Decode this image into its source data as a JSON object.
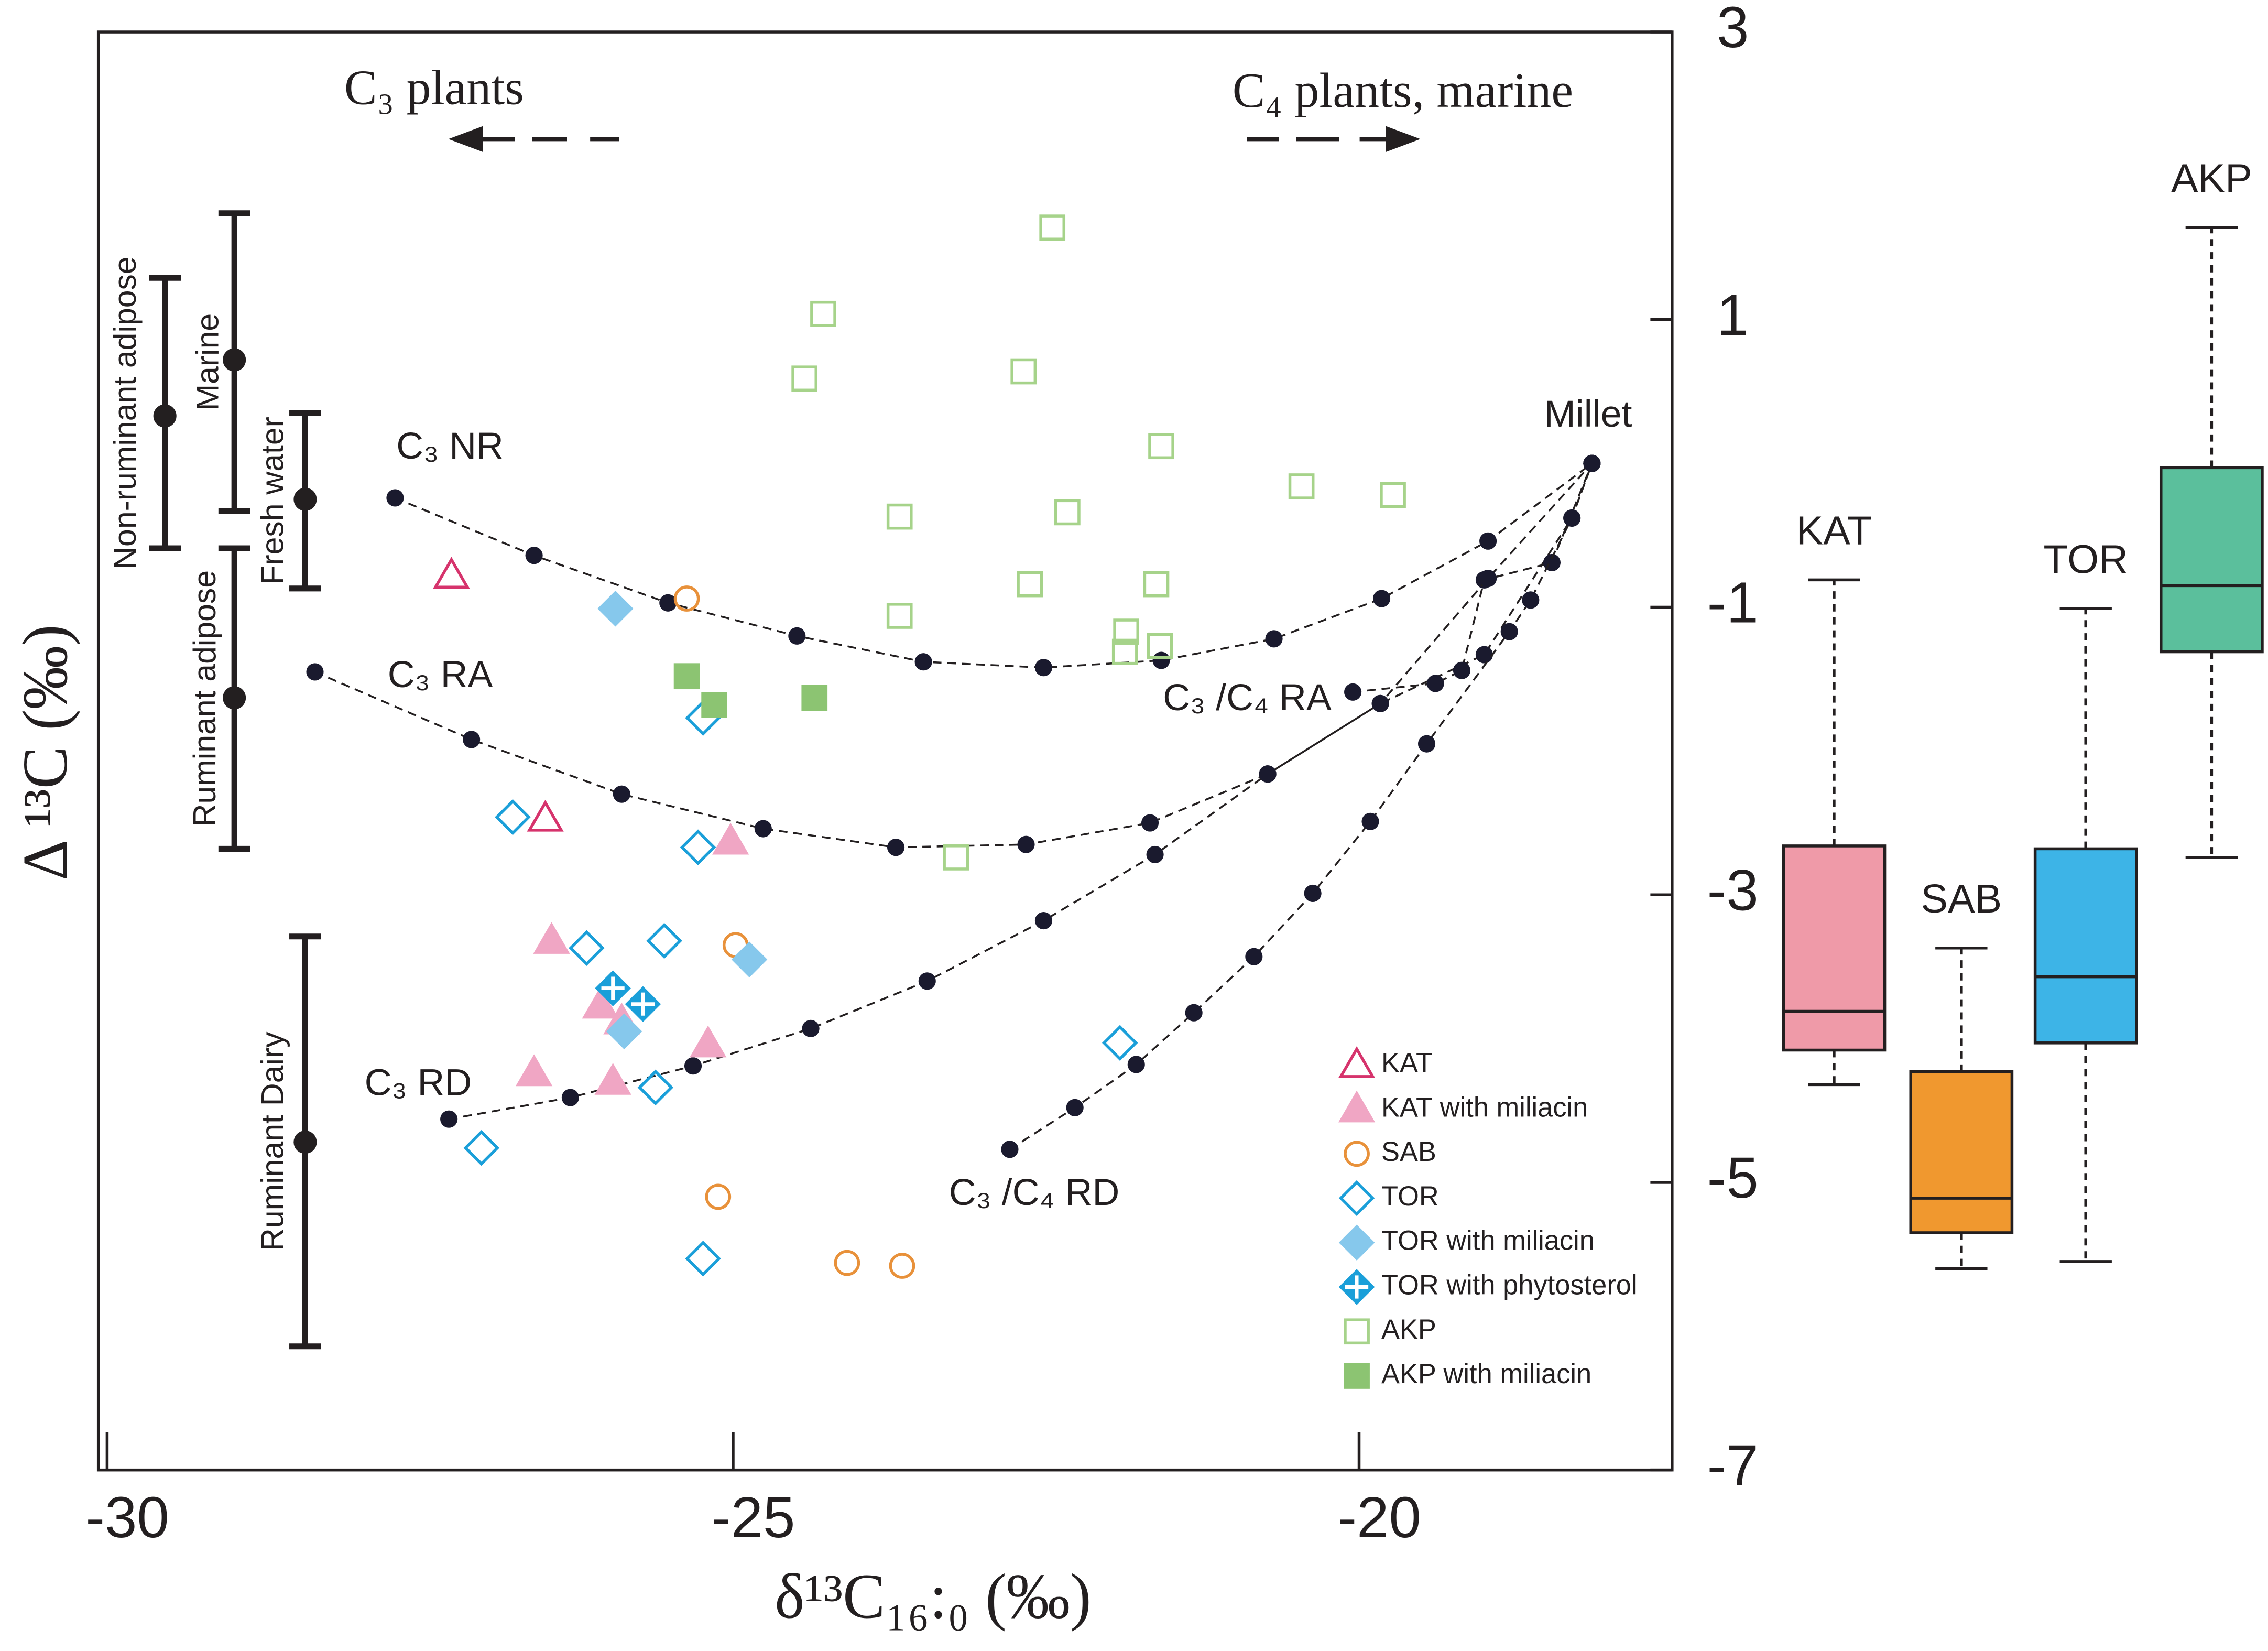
{
  "chart_data": [
    {
      "type": "scatter",
      "xlabel": "δ¹³C₁₆:₀ (‰)",
      "ylabel": "Δ ¹³C (‰)",
      "xlim": [
        -30.07,
        -17.5
      ],
      "xticks": [
        -30,
        -25,
        -20
      ],
      "ylim": [
        -7,
        3
      ],
      "yticks": [
        -7,
        -5,
        -3,
        -1,
        1,
        3
      ],
      "annotations": [
        "C₃ plants",
        "C₄ plants, marine",
        "Millet"
      ],
      "series": [
        {
          "name": "KAT",
          "color": "#d6336c",
          "marker": "triangle",
          "filled": false,
          "x": [
            -27.25,
            -26.5
          ],
          "y": [
            -0.78,
            -2.47
          ]
        },
        {
          "name": "KAT with miliacin",
          "color": "#f0a6c4",
          "marker": "triangle",
          "filled": true,
          "x": [
            -26.45,
            -26.06,
            -25.89,
            -25.2,
            -26.59,
            -25.96,
            -25.02
          ],
          "y": [
            -3.32,
            -3.77,
            -3.88,
            -4.04,
            -4.24,
            -4.3,
            -2.63
          ]
        },
        {
          "name": "SAB",
          "color": "#e8913a",
          "marker": "circle",
          "filled": false,
          "x": [
            -25.37,
            -24.98,
            -25.12,
            -24.09,
            -23.65
          ],
          "y": [
            -0.94,
            -3.35,
            -5.1,
            -5.56,
            -5.58
          ]
        },
        {
          "name": "TOR",
          "color": "#1a9fd9",
          "marker": "diamond",
          "filled": false,
          "x": [
            -25.24,
            -26.76,
            -25.28,
            -26.17,
            -25.55,
            -25.62,
            -27.01,
            -21.91,
            -25.24
          ],
          "y": [
            -1.77,
            -2.46,
            -2.67,
            -3.37,
            -3.32,
            -4.34,
            -4.76,
            -4.03,
            -5.53
          ]
        },
        {
          "name": "TOR with miliacin",
          "color": "#86c8ec",
          "marker": "diamond",
          "filled": true,
          "x": [
            -25.94,
            -24.87,
            -25.87
          ],
          "y": [
            -1.01,
            -3.45,
            -3.95
          ]
        },
        {
          "name": "TOR with phytosterol",
          "color": "#1a9fd9",
          "marker": "diamond-cross",
          "filled": true,
          "x": [
            -25.96,
            -25.72
          ],
          "y": [
            -3.65,
            -3.76
          ]
        },
        {
          "name": "AKP",
          "color": "#a6d38a",
          "marker": "square",
          "filled": false,
          "x": [
            -22.45,
            -24.28,
            -24.43,
            -22.68,
            -21.58,
            -23.67,
            -22.33,
            -20.46,
            -19.73,
            -22.63,
            -21.62,
            -23.67,
            -21.86,
            -21.87,
            -21.59,
            -23.22
          ],
          "y": [
            1.64,
            1.04,
            0.59,
            0.64,
            0.12,
            -0.37,
            -0.34,
            -0.16,
            -0.22,
            -0.84,
            -0.84,
            -1.06,
            -1.17,
            -1.31,
            -1.27,
            -2.74
          ]
        },
        {
          "name": "AKP with miliacin",
          "color": "#8cc472",
          "marker": "square",
          "filled": true,
          "x": [
            -25.37,
            -25.15,
            -24.35
          ],
          "y": [
            -1.48,
            -1.68,
            -1.63
          ]
        }
      ],
      "curves": [
        {
          "name": "C₃ NR",
          "x": [
            -27.7,
            -26.59,
            -25.52,
            -24.49,
            -23.48,
            -22.52,
            -21.58,
            -20.68,
            -19.82,
            -18.97,
            -18.14
          ],
          "y": [
            -0.24,
            -0.64,
            -0.97,
            -1.2,
            -1.38,
            -1.42,
            -1.37,
            -1.22,
            -0.94,
            -0.54,
            0
          ]
        },
        {
          "name": "C₃ RA",
          "x": [
            -28.34,
            -27.09,
            -25.89,
            -24.76,
            -23.7,
            -22.66,
            -21.67,
            -20.73,
            -19.83,
            -19.0,
            -18.3,
            -18.14
          ],
          "y": [
            -1.45,
            -1.92,
            -2.3,
            -2.54,
            -2.67,
            -2.65,
            -2.5,
            -2.16,
            -1.67,
            -1.33,
            -0.38,
            0
          ]
        },
        {
          "name": "C₃ /C₄ RA",
          "x": [
            -20.05,
            -19.39,
            -19.18,
            -19.0,
            -18.46,
            -18.14
          ],
          "y": [
            -1.59,
            -1.53,
            -1.44,
            -0.81,
            -0.69,
            0
          ]
        },
        {
          "name": "C₃ RD",
          "x": [
            -27.27,
            -26.3,
            -25.32,
            -24.38,
            -23.45,
            -22.52,
            -21.63,
            -20.73,
            -19.83,
            -18.97,
            -18.14
          ],
          "y": [
            -4.56,
            -4.41,
            -4.19,
            -3.93,
            -3.6,
            -3.18,
            -2.72,
            -2.16,
            -1.67,
            -0.8,
            0
          ]
        },
        {
          "name": "C₃ /C₄ RD",
          "x": [
            -22.79,
            -22.27,
            -21.78,
            -21.32,
            -20.84,
            -20.37,
            -19.91,
            -19.46,
            -18.8,
            -18.63,
            -18.3,
            -18.14
          ],
          "y": [
            -4.77,
            -4.48,
            -4.18,
            -3.82,
            -3.43,
            -2.99,
            -2.49,
            -1.95,
            -1.17,
            -0.95,
            -0.38,
            0
          ]
        }
      ],
      "ranges": [
        {
          "name": "Non-ruminant adipose",
          "low": -0.59,
          "mid": 0.33,
          "high": 1.29
        },
        {
          "name": "Marine",
          "low": -0.33,
          "mid": 0.72,
          "high": 1.74
        },
        {
          "name": "Fresh water",
          "low": -0.87,
          "mid": -0.25,
          "high": 0.35
        },
        {
          "name": "Ruminant adipose",
          "low": -2.68,
          "mid": -1.63,
          "high": -0.59
        },
        {
          "name": "Ruminant Dairy",
          "low": -6.14,
          "mid": -4.72,
          "high": -3.29
        }
      ]
    },
    {
      "type": "box",
      "ylim": [
        -7,
        3
      ],
      "categories": [
        "KAT",
        "SAB",
        "TOR",
        "AKP"
      ],
      "colors": [
        "#ef9aa8",
        "#f0982f",
        "#3db4e7",
        "#5bbf9c"
      ],
      "min": [
        -4.32,
        -5.6,
        -5.55,
        -2.74
      ],
      "q1": [
        -4.08,
        -5.35,
        -4.03,
        -1.31
      ],
      "median": [
        -3.81,
        -5.11,
        -3.57,
        -0.85
      ],
      "q3": [
        -2.66,
        -4.23,
        -2.68,
        -0.03
      ],
      "max": [
        -0.81,
        -3.37,
        -1.01,
        1.64
      ]
    }
  ]
}
